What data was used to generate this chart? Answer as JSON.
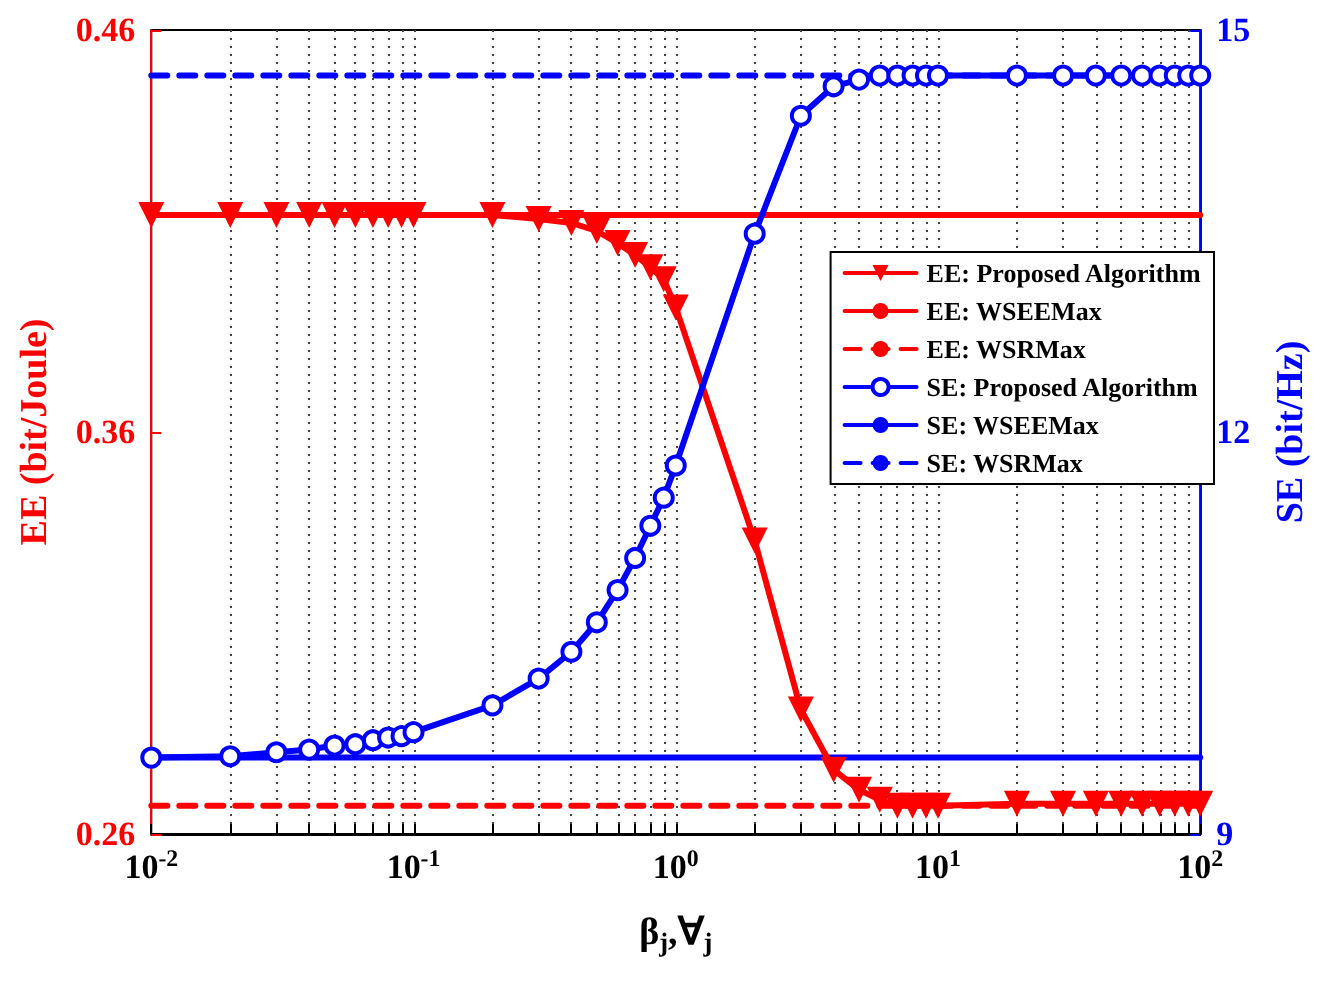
{
  "chart_data": {
    "type": "line",
    "xlabel": "β$_{j}$,∀$_{j}$",
    "ylabel": "EE (bit/Joule)",
    "y2label": "SE (bit/Hz)",
    "log": "x",
    "grid": "x",
    "legend": "right",
    "xlim": [
      0.01,
      100
    ],
    "xticks": [
      {
        "value": 0.01,
        "label": "10$^{-2}$"
      },
      {
        "value": 0.02,
        "label": null
      },
      {
        "value": 0.03,
        "label": null
      },
      {
        "value": 0.04,
        "label": null
      },
      {
        "value": 0.05,
        "label": null
      },
      {
        "value": 0.06,
        "label": null
      },
      {
        "value": 0.07,
        "label": null
      },
      {
        "value": 0.08,
        "label": null
      },
      {
        "value": 0.09,
        "label": null
      },
      {
        "value": 0.1,
        "label": "10$^{-1}$"
      },
      {
        "value": 0.2,
        "label": null
      },
      {
        "value": 0.3,
        "label": null
      },
      {
        "value": 0.4,
        "label": null
      },
      {
        "value": 0.5,
        "label": null
      },
      {
        "value": 0.6,
        "label": null
      },
      {
        "value": 0.7,
        "label": null
      },
      {
        "value": 0.8,
        "label": null
      },
      {
        "value": 0.9,
        "label": null
      },
      {
        "value": 1,
        "label": "10$^{0}$"
      },
      {
        "value": 2,
        "label": null
      },
      {
        "value": 3,
        "label": null
      },
      {
        "value": 4,
        "label": null
      },
      {
        "value": 5,
        "label": null
      },
      {
        "value": 6,
        "label": null
      },
      {
        "value": 7,
        "label": null
      },
      {
        "value": 8,
        "label": null
      },
      {
        "value": 9,
        "label": null
      },
      {
        "value": 10,
        "label": "10$^{1}$"
      },
      {
        "value": 20,
        "label": null
      },
      {
        "value": 30,
        "label": null
      },
      {
        "value": 40,
        "label": null
      },
      {
        "value": 50,
        "label": null
      },
      {
        "value": 60,
        "label": null
      },
      {
        "value": 70,
        "label": null
      },
      {
        "value": 80,
        "label": null
      },
      {
        "value": 90,
        "label": null
      },
      {
        "value": 100,
        "label": "10$^{2}$"
      }
    ],
    "ylim": [
      0.26,
      0.46
    ],
    "yticks": [
      0.26,
      0.36,
      0.46
    ],
    "y2lim": [
      9,
      15
    ],
    "y2ticks": [
      9,
      12,
      15
    ],
    "series": [
      {
        "name": "EE: Proposed Algorithm",
        "color": "#ff0000",
        "marker": "triangle",
        "line_style": "solid",
        "x": [
          0.01,
          0.02,
          0.03,
          0.04,
          0.05,
          0.06,
          0.07,
          0.08,
          0.09,
          0.1,
          0.2,
          0.3,
          0.4,
          0.5,
          0.6,
          0.7,
          0.8,
          0.9,
          1,
          2,
          3,
          4,
          5,
          6,
          7,
          8,
          9,
          10,
          20,
          30,
          40,
          50,
          60,
          70,
          80,
          90,
          100
        ],
        "values": [
          0.414,
          0.414,
          0.414,
          0.414,
          0.414,
          0.414,
          0.414,
          0.414,
          0.414,
          0.414,
          0.414,
          0.413,
          0.412,
          0.41,
          0.407,
          0.404,
          0.401,
          0.398,
          0.391,
          0.333,
          0.291,
          0.276,
          0.271,
          0.2685,
          0.267,
          0.267,
          0.267,
          0.267,
          0.2675,
          0.2675,
          0.2675,
          0.2675,
          0.2675,
          0.2675,
          0.2675,
          0.2675,
          0.2675
        ]
      },
      {
        "name": "EE: WSEEMax",
        "color": "#ff0000",
        "marker": "none",
        "line_style": "solid",
        "x": [
          0.01,
          100
        ],
        "values": [
          0.414,
          0.414
        ]
      },
      {
        "name": "EE: WSRMax",
        "color": "#ff0000",
        "marker": "none",
        "line_style": "dashed",
        "x": [
          0.01,
          100
        ],
        "values": [
          0.267,
          0.267
        ]
      },
      {
        "name": "SE: Proposed Algorithm",
        "color": "#0000ff",
        "marker": "circle",
        "line_style": "solid",
        "axis": "y2",
        "x": [
          0.01,
          0.02,
          0.03,
          0.04,
          0.05,
          0.06,
          0.07,
          0.08,
          0.09,
          0.1,
          0.2,
          0.3,
          0.4,
          0.5,
          0.6,
          0.7,
          0.8,
          0.9,
          1,
          2,
          3,
          4,
          5,
          6,
          7,
          8,
          9,
          10,
          20,
          30,
          40,
          50,
          60,
          70,
          80,
          90,
          100
        ],
        "values": [
          9.57,
          9.58,
          9.61,
          9.63,
          9.66,
          9.67,
          9.7,
          9.72,
          9.73,
          9.76,
          9.96,
          10.16,
          10.36,
          10.58,
          10.82,
          11.06,
          11.3,
          11.51,
          11.75,
          13.48,
          14.36,
          14.58,
          14.63,
          14.66,
          14.66,
          14.66,
          14.66,
          14.66,
          14.66,
          14.66,
          14.66,
          14.66,
          14.66,
          14.66,
          14.66,
          14.66,
          14.66
        ]
      },
      {
        "name": "SE: WSEEMax",
        "color": "#0000ff",
        "marker": "none",
        "line_style": "solid",
        "axis": "y2",
        "x": [
          0.01,
          100
        ],
        "values": [
          9.57,
          9.57
        ]
      },
      {
        "name": "SE: WSRMax",
        "color": "#0000ff",
        "marker": "none",
        "line_style": "dashed",
        "axis": "y2",
        "x": [
          0.01,
          100
        ],
        "values": [
          14.66,
          14.66
        ]
      }
    ]
  }
}
